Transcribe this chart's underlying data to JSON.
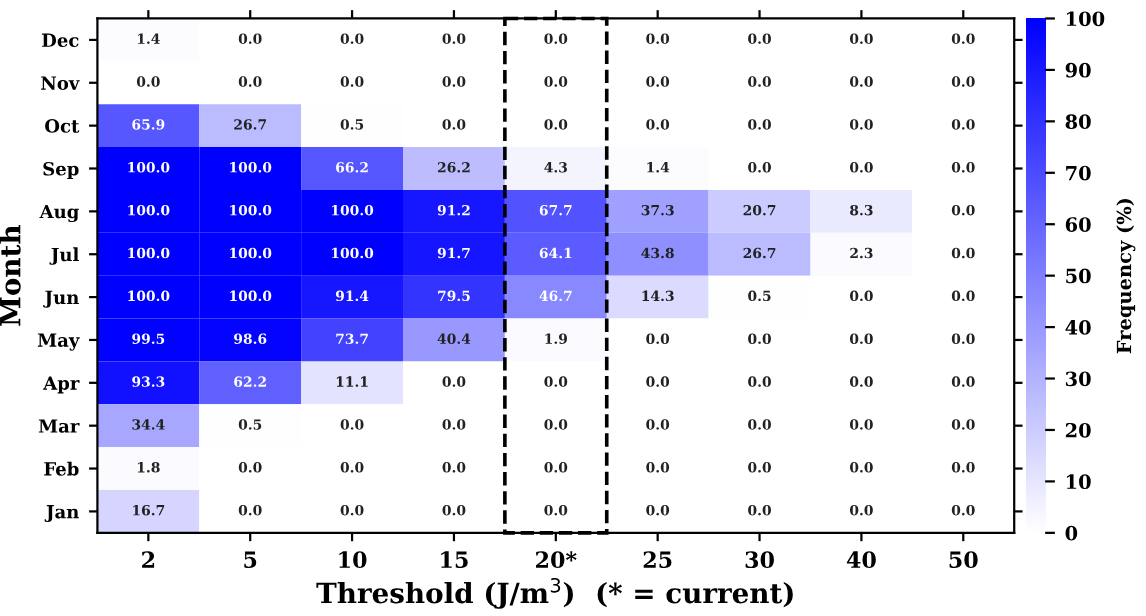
{
  "chart_data": {
    "type": "heatmap",
    "xlabel": "Threshold (J/m$^{3}$)  (* = current)",
    "ylabel": "Month",
    "clabel": "Frequency (%)",
    "categories": [
      "2",
      "5",
      "10",
      "15",
      "20*",
      "25",
      "30",
      "40",
      "50"
    ],
    "y_categories": [
      "Dec",
      "Nov",
      "Oct",
      "Sep",
      "Aug",
      "Jul",
      "Jun",
      "May",
      "Apr",
      "Mar",
      "Feb",
      "Jan"
    ],
    "cells": [
      [
        1.4,
        0.0,
        0.0,
        0.0,
        0.0,
        0.0,
        0.0,
        0.0,
        0.0
      ],
      [
        0.0,
        0.0,
        0.0,
        0.0,
        0.0,
        0.0,
        0.0,
        0.0,
        0.0
      ],
      [
        65.9,
        26.7,
        0.5,
        0.0,
        0.0,
        0.0,
        0.0,
        0.0,
        0.0
      ],
      [
        100.0,
        100.0,
        66.2,
        26.2,
        4.3,
        1.4,
        0.0,
        0.0,
        0.0
      ],
      [
        100.0,
        100.0,
        100.0,
        91.2,
        67.7,
        37.3,
        20.7,
        8.3,
        0.0
      ],
      [
        100.0,
        100.0,
        100.0,
        91.7,
        64.1,
        43.8,
        26.7,
        2.3,
        0.0
      ],
      [
        100.0,
        100.0,
        91.4,
        79.5,
        46.7,
        14.3,
        0.5,
        0.0,
        0.0
      ],
      [
        99.5,
        98.6,
        73.7,
        40.4,
        1.9,
        0.0,
        0.0,
        0.0,
        0.0
      ],
      [
        93.3,
        62.2,
        11.1,
        0.0,
        0.0,
        0.0,
        0.0,
        0.0,
        0.0
      ],
      [
        34.4,
        0.5,
        0.0,
        0.0,
        0.0,
        0.0,
        0.0,
        0.0,
        0.0
      ],
      [
        1.8,
        0.0,
        0.0,
        0.0,
        0.0,
        0.0,
        0.0,
        0.0,
        0.0
      ],
      [
        16.7,
        0.0,
        0.0,
        0.0,
        0.0,
        0.0,
        0.0,
        0.0,
        0.0
      ]
    ],
    "cell_labels": [
      [
        "1.4",
        "0.0",
        "0.0",
        "0.0",
        "0.0",
        "0.0",
        "0.0",
        "0.0",
        "0.0"
      ],
      [
        "0.0",
        "0.0",
        "0.0",
        "0.0",
        "0.0",
        "0.0",
        "0.0",
        "0.0",
        "0.0"
      ],
      [
        "65.9",
        "26.7",
        "0.5",
        "0.0",
        "0.0",
        "0.0",
        "0.0",
        "0.0",
        "0.0"
      ],
      [
        "100.0",
        "100.0",
        "66.2",
        "26.2",
        "4.3",
        "1.4",
        "0.0",
        "0.0",
        "0.0"
      ],
      [
        "100.0",
        "100.0",
        "100.0",
        "91.2",
        "67.7",
        "37.3",
        "20.7",
        "8.3",
        "0.0"
      ],
      [
        "100.0",
        "100.0",
        "100.0",
        "91.7",
        "64.1",
        "43.8",
        "26.7",
        "2.3",
        "0.0"
      ],
      [
        "100.0",
        "100.0",
        "91.4",
        "79.5",
        "46.7",
        "14.3",
        "0.5",
        "0.0",
        "0.0"
      ],
      [
        "99.5",
        "98.6",
        "73.7",
        "40.4",
        "1.9",
        "0.0",
        "0.0",
        "0.0",
        "0.0"
      ],
      [
        "93.3",
        "62.2",
        "11.1",
        "0.0",
        "0.0",
        "0.0",
        "0.0",
        "0.0",
        "0.0"
      ],
      [
        "34.4",
        "0.5",
        "0.0",
        "0.0",
        "0.0",
        "0.0",
        "0.0",
        "0.0",
        "0.0"
      ],
      [
        "1.8",
        "0.0",
        "0.0",
        "0.0",
        "0.0",
        "0.0",
        "0.0",
        "0.0",
        "0.0"
      ],
      [
        "16.7",
        "0.0",
        "0.0",
        "0.0",
        "0.0",
        "0.0",
        "0.0",
        "0.0",
        "0.0"
      ]
    ],
    "colors": [
      "#ffffff",
      "#0000ff"
    ],
    "clim": [
      0,
      100
    ],
    "cticks": [
      0,
      10,
      20,
      30,
      40,
      50,
      60,
      70,
      80,
      90,
      100
    ]
  }
}
